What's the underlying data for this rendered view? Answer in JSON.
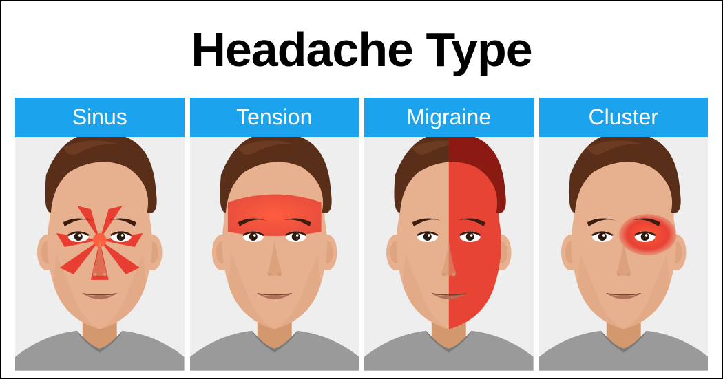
{
  "infographic": {
    "title": "Headache Type",
    "title_fontsize": 70,
    "title_color": "#000000",
    "background": "#ffffff",
    "border_color": "#000000",
    "card_header_bg": "#1ba3ed",
    "card_header_color": "#ffffff",
    "card_header_fontsize": 32,
    "figure_bg": "#eeeeee",
    "skin_color": "#e7b08e",
    "skin_shadow": "#d4986f",
    "hair_color": "#5a2f1a",
    "hair_highlight": "#7a4528",
    "eyebrow_color": "#3a1d0e",
    "eye_color": "#2a1a10",
    "lip_color": "#b0705a",
    "shirt_color": "#9a9a9a",
    "shirt_shadow": "#7a7a7a",
    "pain_color": "#e8352a",
    "pain_glow": "#ff5a3a",
    "types": [
      {
        "name": "sinus",
        "label": "Sinus",
        "pain_pattern": "sinus"
      },
      {
        "name": "tension",
        "label": "Tension",
        "pain_pattern": "tension"
      },
      {
        "name": "migraine",
        "label": "Migraine",
        "pain_pattern": "migraine"
      },
      {
        "name": "cluster",
        "label": "Cluster",
        "pain_pattern": "cluster"
      }
    ]
  }
}
